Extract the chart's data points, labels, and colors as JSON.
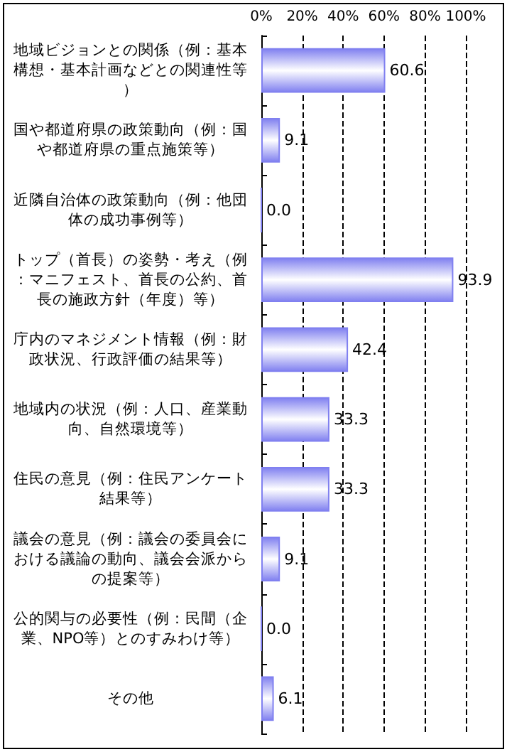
{
  "chart_data": {
    "type": "bar",
    "orientation": "horizontal",
    "categories": [
      "地域ビジョンとの関係（例：基本構想・基本計画などとの関連性等）",
      "国や都道府県の政策動向（例：国や都道府県の重点施策等）",
      "近隣自治体の政策動向（例：他団体の成功事例等）",
      "トップ（首長）の姿勢・考え（例：マニフェスト、首長の公約、首長の施政方針（年度）等）",
      "庁内のマネジメント情報（例：財政状況、行政評価の結果等）",
      "地域内の状況（例：人口、産業動向、自然環境等）",
      "住民の意見（例：住民アンケート結果等）",
      "議会の意見（例：議会の委員会における議論の動向、議会会派からの提案等）",
      "公的関与の必要性（例：民間（企業、NPO等）とのすみわけ等）",
      "その他"
    ],
    "values": [
      60.6,
      9.1,
      0.0,
      93.9,
      42.4,
      33.3,
      33.3,
      9.1,
      0.0,
      6.1
    ],
    "value_labels": [
      "60.6",
      "9.1",
      "0.0",
      "93.9",
      "42.4",
      "33.3",
      "33.3",
      "9.1",
      "0.0",
      "6.1"
    ],
    "color": "#8080f0",
    "xlim": [
      0,
      100
    ],
    "xticks": [
      {
        "value": 0,
        "label": "0%"
      },
      {
        "value": 20,
        "label": "20%"
      },
      {
        "value": 40,
        "label": "40%"
      },
      {
        "value": 60,
        "label": "60%"
      },
      {
        "value": 80,
        "label": "80%"
      },
      {
        "value": 100,
        "label": "100%"
      }
    ],
    "grid": "x"
  }
}
